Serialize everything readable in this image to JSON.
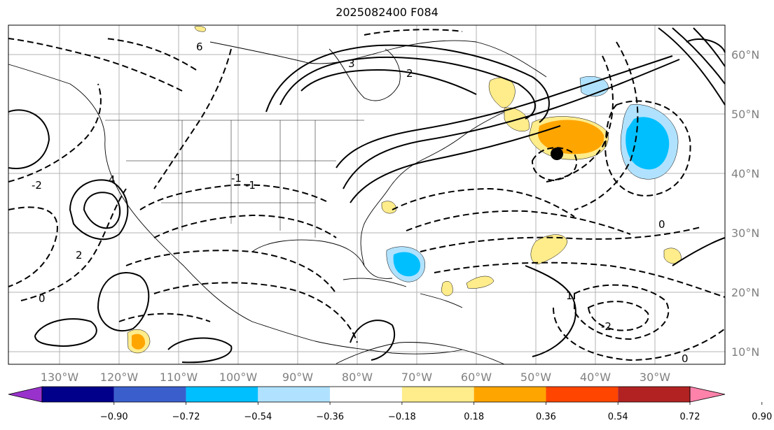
{
  "title": "2025082400 F084",
  "lon_ticks": [
    "130°W",
    "120°W",
    "110°W",
    "100°W",
    "90°W",
    "80°W",
    "70°W",
    "60°W",
    "50°W",
    "40°W",
    "30°W"
  ],
  "lat_ticks": [
    "60°N",
    "50°N",
    "40°N",
    "30°N",
    "20°N",
    "10°N"
  ],
  "colorbar": {
    "colors": [
      "#9932cc",
      "#00008b",
      "#3a5fcd",
      "#00bfff",
      "#b0e2ff",
      "#ffffff",
      "#ffec8b",
      "#ffa500",
      "#ff4500",
      "#b22222",
      "#ff82ab"
    ],
    "labels": [
      "−0.90",
      "−0.72",
      "−0.54",
      "−0.36",
      "−0.18",
      "0.18",
      "0.36",
      "0.54",
      "0.72",
      "0.90"
    ]
  },
  "contour_labels": [
    "-2",
    "0",
    "2",
    "4",
    "6",
    "-1",
    "3",
    "-1",
    "2",
    "0",
    "-2",
    "1",
    "0"
  ],
  "marker": "storm-center-marker"
}
